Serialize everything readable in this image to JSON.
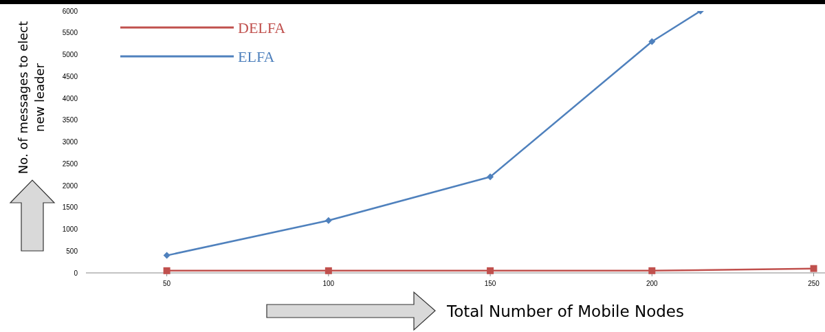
{
  "chart_data": {
    "type": "line",
    "xlabel": "Total Number of Mobile Nodes",
    "ylabel": "No. of messages to elect new leader",
    "xlim": [
      25,
      253.5
    ],
    "xticks": [
      50,
      100,
      150,
      200,
      250
    ],
    "ylim": [
      0,
      6000
    ],
    "yticks": [
      0,
      500,
      1000,
      1500,
      2000,
      2500,
      3000,
      3500,
      4000,
      4500,
      5000,
      5500,
      6000
    ],
    "grid": false,
    "legend": "top left",
    "line_style": "solid",
    "series": [
      {
        "name": "DELFA",
        "color": "#c0504d",
        "marker": "square",
        "x": [
          50,
          100,
          150,
          200,
          250
        ],
        "values": [
          50,
          50,
          50,
          50,
          100
        ]
      },
      {
        "name": "ELFA",
        "color": "#4f81bd",
        "marker": "diamond",
        "x": [
          50,
          100,
          150,
          200,
          215
        ],
        "values": [
          400,
          1200,
          2200,
          5300,
          6000
        ]
      }
    ]
  }
}
